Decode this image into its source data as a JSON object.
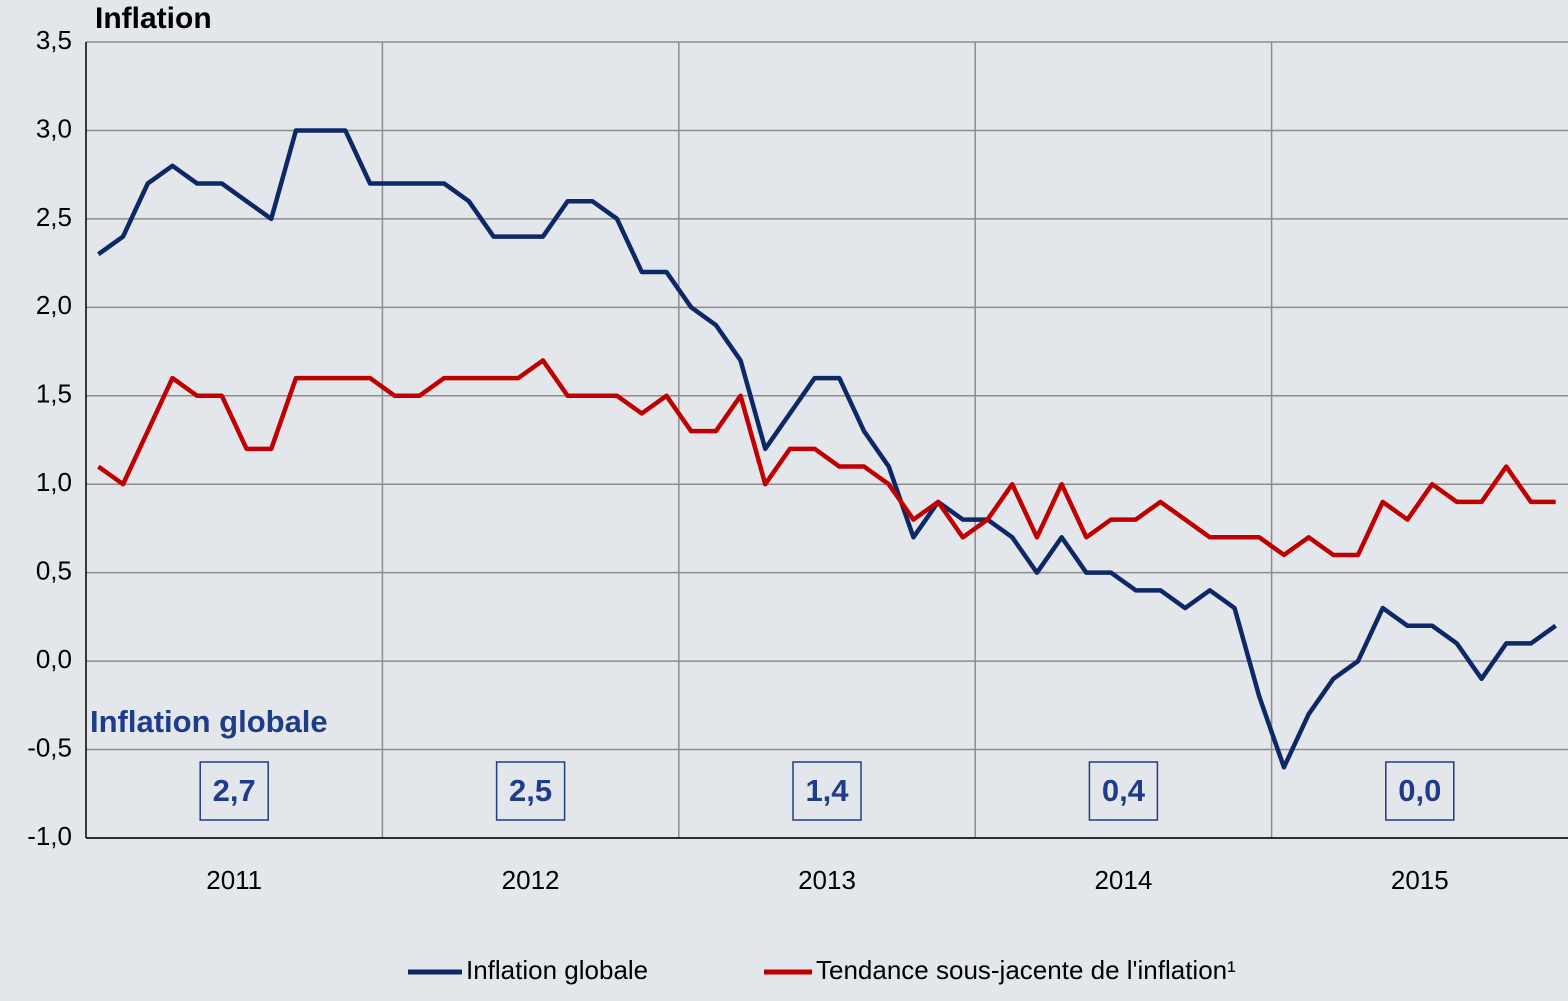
{
  "chart_data": {
    "type": "line",
    "title": "Inflation",
    "annotation": "Inflation globale",
    "categories": [
      "2011",
      null,
      null,
      null,
      null,
      null,
      null,
      null,
      null,
      null,
      null,
      null,
      "2012",
      null,
      null,
      null,
      null,
      null,
      null,
      null,
      null,
      null,
      null,
      null,
      "2013",
      null,
      null,
      null,
      null,
      null,
      null,
      null,
      null,
      null,
      null,
      null,
      "2014",
      null,
      null,
      null,
      null,
      null,
      null,
      null,
      null,
      null,
      null,
      null,
      "2015",
      null,
      null,
      null,
      null,
      null,
      null,
      null,
      null,
      null,
      null,
      null
    ],
    "series": [
      {
        "name": "Inflation globale",
        "color": "#0d2866",
        "values": [
          2.3,
          2.4,
          2.7,
          2.8,
          2.7,
          2.7,
          2.6,
          2.5,
          3.0,
          3.0,
          3.0,
          2.7,
          2.7,
          2.7,
          2.7,
          2.6,
          2.4,
          2.4,
          2.4,
          2.6,
          2.6,
          2.5,
          2.2,
          2.2,
          2.0,
          1.9,
          1.7,
          1.2,
          1.4,
          1.6,
          1.6,
          1.3,
          1.1,
          0.7,
          0.9,
          0.8,
          0.8,
          0.7,
          0.5,
          0.7,
          0.5,
          0.5,
          0.4,
          0.4,
          0.3,
          0.4,
          0.3,
          -0.2,
          -0.6,
          -0.3,
          -0.1,
          0.0,
          0.3,
          0.2,
          0.2,
          0.1,
          -0.1,
          0.1,
          0.1,
          0.2
        ]
      },
      {
        "name": "Tendance sous-jacente de l'inflation¹",
        "color": "#c00000",
        "values": [
          1.1,
          1.0,
          1.3,
          1.6,
          1.5,
          1.5,
          1.2,
          1.2,
          1.6,
          1.6,
          1.6,
          1.6,
          1.5,
          1.5,
          1.6,
          1.6,
          1.6,
          1.6,
          1.7,
          1.5,
          1.5,
          1.5,
          1.4,
          1.5,
          1.3,
          1.3,
          1.5,
          1.0,
          1.2,
          1.2,
          1.1,
          1.1,
          1.0,
          0.8,
          0.9,
          0.7,
          0.8,
          1.0,
          0.7,
          1.0,
          0.7,
          0.8,
          0.8,
          0.9,
          0.8,
          0.7,
          0.7,
          0.7,
          0.6,
          0.7,
          0.6,
          0.6,
          0.9,
          0.8,
          1.0,
          0.9,
          0.9,
          1.1,
          0.9,
          0.9
        ]
      }
    ],
    "annual_averages": [
      2.7,
      2.5,
      1.4,
      0.4,
      0.0
    ],
    "value_labels": [
      "2,7",
      "2,5",
      "1,4",
      "0,4",
      "0,0"
    ],
    "ylim": [
      -1.0,
      3.5
    ],
    "yticks": [
      {
        "value": -1.0,
        "label": "-1,0"
      },
      {
        "value": -0.5,
        "label": "-0,5"
      },
      {
        "value": 0.0,
        "label": "0,0"
      },
      {
        "value": 0.5,
        "label": "0,5"
      },
      {
        "value": 1.0,
        "label": "1,0"
      },
      {
        "value": 1.5,
        "label": "1,5"
      },
      {
        "value": 2.0,
        "label": "2,0"
      },
      {
        "value": 2.5,
        "label": "2,5"
      },
      {
        "value": 3.0,
        "label": "3,0"
      },
      {
        "value": 3.5,
        "label": "3,5"
      }
    ],
    "grid": true,
    "legend": "bottom"
  }
}
